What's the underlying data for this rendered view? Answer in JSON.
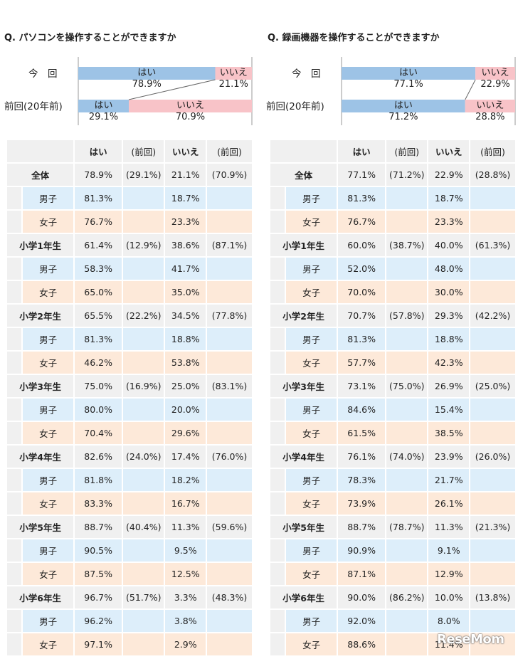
{
  "chart_data": [
    {
      "type": "bar",
      "title": "Q. パソコンを操作することができますか",
      "rows_label": [
        "今　回",
        "前回(20年前)"
      ],
      "series": [
        {
          "name": "はい",
          "values": [
            78.9,
            29.1
          ]
        },
        {
          "name": "いいえ",
          "values": [
            21.1,
            70.9
          ]
        }
      ],
      "table": {
        "headers": [
          "",
          "はい",
          "(前回)",
          "いいえ",
          "(前回)"
        ],
        "rows": [
          {
            "label": "全体",
            "kind": "total",
            "yes": "78.9%",
            "yes_prev": "(29.1%)",
            "no": "21.1%",
            "no_prev": "(70.9%)"
          },
          {
            "label": "男子",
            "kind": "boys",
            "yes": "81.3%",
            "yes_prev": "",
            "no": "18.7%",
            "no_prev": ""
          },
          {
            "label": "女子",
            "kind": "girls",
            "yes": "76.7%",
            "yes_prev": "",
            "no": "23.3%",
            "no_prev": ""
          },
          {
            "label": "小学1年生",
            "kind": "grade",
            "yes": "61.4%",
            "yes_prev": "(12.9%)",
            "no": "38.6%",
            "no_prev": "(87.1%)"
          },
          {
            "label": "男子",
            "kind": "boys",
            "yes": "58.3%",
            "yes_prev": "",
            "no": "41.7%",
            "no_prev": ""
          },
          {
            "label": "女子",
            "kind": "girls",
            "yes": "65.0%",
            "yes_prev": "",
            "no": "35.0%",
            "no_prev": ""
          },
          {
            "label": "小学2年生",
            "kind": "grade",
            "yes": "65.5%",
            "yes_prev": "(22.2%)",
            "no": "34.5%",
            "no_prev": "(77.8%)"
          },
          {
            "label": "男子",
            "kind": "boys",
            "yes": "81.3%",
            "yes_prev": "",
            "no": "18.8%",
            "no_prev": ""
          },
          {
            "label": "女子",
            "kind": "girls",
            "yes": "46.2%",
            "yes_prev": "",
            "no": "53.8%",
            "no_prev": ""
          },
          {
            "label": "小学3年生",
            "kind": "grade",
            "yes": "75.0%",
            "yes_prev": "(16.9%)",
            "no": "25.0%",
            "no_prev": "(83.1%)"
          },
          {
            "label": "男子",
            "kind": "boys",
            "yes": "80.0%",
            "yes_prev": "",
            "no": "20.0%",
            "no_prev": ""
          },
          {
            "label": "女子",
            "kind": "girls",
            "yes": "70.4%",
            "yes_prev": "",
            "no": "29.6%",
            "no_prev": ""
          },
          {
            "label": "小学4年生",
            "kind": "grade",
            "yes": "82.6%",
            "yes_prev": "(24.0%)",
            "no": "17.4%",
            "no_prev": "(76.0%)"
          },
          {
            "label": "男子",
            "kind": "boys",
            "yes": "81.8%",
            "yes_prev": "",
            "no": "18.2%",
            "no_prev": ""
          },
          {
            "label": "女子",
            "kind": "girls",
            "yes": "83.3%",
            "yes_prev": "",
            "no": "16.7%",
            "no_prev": ""
          },
          {
            "label": "小学5年生",
            "kind": "grade",
            "yes": "88.7%",
            "yes_prev": "(40.4%)",
            "no": "11.3%",
            "no_prev": "(59.6%)"
          },
          {
            "label": "男子",
            "kind": "boys",
            "yes": "90.5%",
            "yes_prev": "",
            "no": "9.5%",
            "no_prev": ""
          },
          {
            "label": "女子",
            "kind": "girls",
            "yes": "87.5%",
            "yes_prev": "",
            "no": "12.5%",
            "no_prev": ""
          },
          {
            "label": "小学6年生",
            "kind": "grade",
            "yes": "96.7%",
            "yes_prev": "(51.7%)",
            "no": "3.3%",
            "no_prev": "(48.3%)"
          },
          {
            "label": "男子",
            "kind": "boys",
            "yes": "96.2%",
            "yes_prev": "",
            "no": "3.8%",
            "no_prev": ""
          },
          {
            "label": "女子",
            "kind": "girls",
            "yes": "97.1%",
            "yes_prev": "",
            "no": "2.9%",
            "no_prev": ""
          }
        ]
      }
    },
    {
      "type": "bar",
      "title": "Q. 録画機器を操作することができますか",
      "rows_label": [
        "今　回",
        "前回(20年前)"
      ],
      "series": [
        {
          "name": "はい",
          "values": [
            77.1,
            71.2
          ]
        },
        {
          "name": "いいえ",
          "values": [
            22.9,
            28.8
          ]
        }
      ],
      "table": {
        "headers": [
          "",
          "はい",
          "(前回)",
          "いいえ",
          "(前回)"
        ],
        "rows": [
          {
            "label": "全体",
            "kind": "total",
            "yes": "77.1%",
            "yes_prev": "(71.2%)",
            "no": "22.9%",
            "no_prev": "(28.8%)"
          },
          {
            "label": "男子",
            "kind": "boys",
            "yes": "81.3%",
            "yes_prev": "",
            "no": "18.7%",
            "no_prev": ""
          },
          {
            "label": "女子",
            "kind": "girls",
            "yes": "76.7%",
            "yes_prev": "",
            "no": "23.3%",
            "no_prev": ""
          },
          {
            "label": "小学1年生",
            "kind": "grade",
            "yes": "60.0%",
            "yes_prev": "(38.7%)",
            "no": "40.0%",
            "no_prev": "(61.3%)"
          },
          {
            "label": "男子",
            "kind": "boys",
            "yes": "52.0%",
            "yes_prev": "",
            "no": "48.0%",
            "no_prev": ""
          },
          {
            "label": "女子",
            "kind": "girls",
            "yes": "70.0%",
            "yes_prev": "",
            "no": "30.0%",
            "no_prev": ""
          },
          {
            "label": "小学2年生",
            "kind": "grade",
            "yes": "70.7%",
            "yes_prev": "(57.8%)",
            "no": "29.3%",
            "no_prev": "(42.2%)"
          },
          {
            "label": "男子",
            "kind": "boys",
            "yes": "81.3%",
            "yes_prev": "",
            "no": "18.8%",
            "no_prev": ""
          },
          {
            "label": "女子",
            "kind": "girls",
            "yes": "57.7%",
            "yes_prev": "",
            "no": "42.3%",
            "no_prev": ""
          },
          {
            "label": "小学3年生",
            "kind": "grade",
            "yes": "73.1%",
            "yes_prev": "(75.0%)",
            "no": "26.9%",
            "no_prev": "(25.0%)"
          },
          {
            "label": "男子",
            "kind": "boys",
            "yes": "84.6%",
            "yes_prev": "",
            "no": "15.4%",
            "no_prev": ""
          },
          {
            "label": "女子",
            "kind": "girls",
            "yes": "61.5%",
            "yes_prev": "",
            "no": "38.5%",
            "no_prev": ""
          },
          {
            "label": "小学4年生",
            "kind": "grade",
            "yes": "76.1%",
            "yes_prev": "(74.0%)",
            "no": "23.9%",
            "no_prev": "(26.0%)"
          },
          {
            "label": "男子",
            "kind": "boys",
            "yes": "78.3%",
            "yes_prev": "",
            "no": "21.7%",
            "no_prev": ""
          },
          {
            "label": "女子",
            "kind": "girls",
            "yes": "73.9%",
            "yes_prev": "",
            "no": "26.1%",
            "no_prev": ""
          },
          {
            "label": "小学5年生",
            "kind": "grade",
            "yes": "88.7%",
            "yes_prev": "(78.7%)",
            "no": "11.3%",
            "no_prev": "(21.3%)"
          },
          {
            "label": "男子",
            "kind": "boys",
            "yes": "90.9%",
            "yes_prev": "",
            "no": "9.1%",
            "no_prev": ""
          },
          {
            "label": "女子",
            "kind": "girls",
            "yes": "87.1%",
            "yes_prev": "",
            "no": "12.9%",
            "no_prev": ""
          },
          {
            "label": "小学6年生",
            "kind": "grade",
            "yes": "90.0%",
            "yes_prev": "(86.2%)",
            "no": "10.0%",
            "no_prev": "(13.8%)"
          },
          {
            "label": "男子",
            "kind": "boys",
            "yes": "92.0%",
            "yes_prev": "",
            "no": "8.0%",
            "no_prev": ""
          },
          {
            "label": "女子",
            "kind": "girls",
            "yes": "88.6%",
            "yes_prev": "",
            "no": "11.4%",
            "no_prev": ""
          }
        ]
      }
    }
  ],
  "colors": {
    "yes": "#9dc3e6",
    "no": "#f8c3c8",
    "divider": "#888888"
  },
  "watermark": "ReseMom"
}
